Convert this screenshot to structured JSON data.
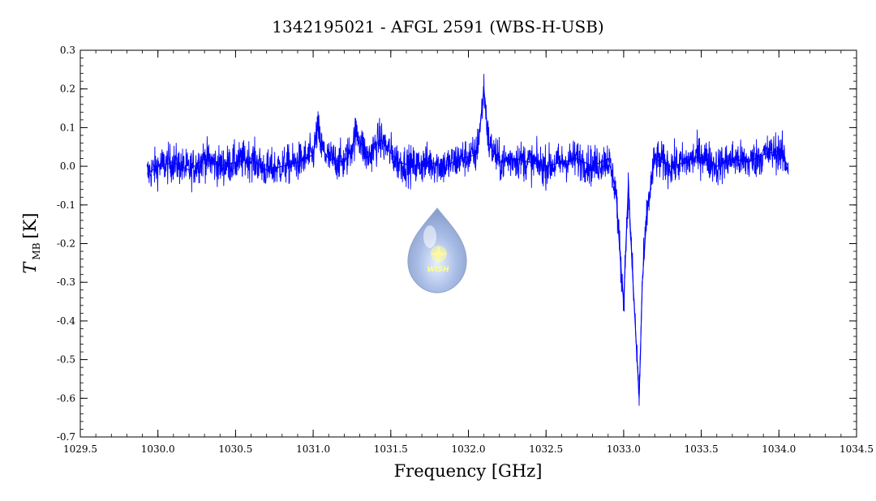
{
  "chart_data": {
    "type": "line",
    "title": "1342195021 - AFGL 2591 (WBS-H-USB)",
    "xlabel": "Frequency [GHz]",
    "ylabel_main": "T",
    "ylabel_sub": "MB",
    "ylabel_unit": "[K]",
    "xlim": [
      1029.5,
      1034.5
    ],
    "ylim": [
      -0.7,
      0.3
    ],
    "x_ticks": [
      1029.5,
      1030.0,
      1030.5,
      1031.0,
      1031.5,
      1032.0,
      1032.5,
      1033.0,
      1033.5,
      1034.0,
      1034.5
    ],
    "x_tick_labels": [
      "1029.5",
      "1030.0",
      "1030.5",
      "1031.0",
      "1031.5",
      "1032.0",
      "1032.5",
      "1033.0",
      "1033.5",
      "1034.0",
      "1034.5"
    ],
    "y_ticks": [
      0.3,
      0.2,
      0.1,
      0.0,
      -0.1,
      -0.2,
      -0.3,
      -0.4,
      -0.5,
      -0.6,
      -0.7
    ],
    "y_tick_labels": [
      "0.3",
      "0.2",
      "0.1",
      "0.0",
      "-0.1",
      "-0.2",
      "-0.3",
      "-0.4",
      "-0.5",
      "-0.6",
      "-0.7"
    ],
    "grid": false,
    "series": [
      {
        "color": "#0000ff",
        "x": [
          1029.93,
          1030.0,
          1030.1,
          1030.2,
          1030.3,
          1030.4,
          1030.5,
          1030.6,
          1030.7,
          1030.8,
          1030.9,
          1031.0,
          1031.03,
          1031.05,
          1031.1,
          1031.2,
          1031.25,
          1031.28,
          1031.35,
          1031.43,
          1031.47,
          1031.55,
          1031.65,
          1031.75,
          1031.85,
          1031.95,
          1032.05,
          1032.08,
          1032.1,
          1032.13,
          1032.2,
          1032.3,
          1032.4,
          1032.5,
          1032.6,
          1032.7,
          1032.8,
          1032.9,
          1032.95,
          1032.98,
          1033.0,
          1033.03,
          1033.06,
          1033.08,
          1033.1,
          1033.12,
          1033.15,
          1033.2,
          1033.3,
          1033.4,
          1033.5,
          1033.6,
          1033.7,
          1033.8,
          1033.9,
          1034.0,
          1034.06
        ],
        "y": [
          -0.02,
          0.0,
          0.01,
          -0.01,
          0.02,
          0.0,
          0.01,
          0.02,
          -0.01,
          0.0,
          0.01,
          0.03,
          0.1,
          0.05,
          0.02,
          0.01,
          0.05,
          0.09,
          0.02,
          0.07,
          0.05,
          0.01,
          0.0,
          0.01,
          0.0,
          0.02,
          0.03,
          0.12,
          0.2,
          0.06,
          0.01,
          0.02,
          0.01,
          0.0,
          0.01,
          0.02,
          0.0,
          0.02,
          -0.06,
          -0.25,
          -0.35,
          -0.05,
          -0.3,
          -0.45,
          -0.6,
          -0.3,
          -0.12,
          0.02,
          0.0,
          0.01,
          0.03,
          0.0,
          0.02,
          0.01,
          0.03,
          0.04,
          0.0
        ],
        "noise_amplitude": 0.035
      }
    ]
  }
}
